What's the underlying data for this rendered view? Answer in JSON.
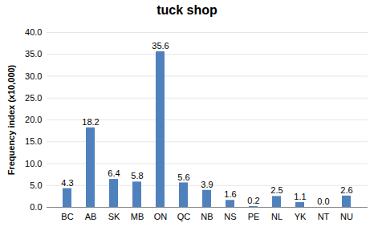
{
  "chart_data": {
    "type": "bar",
    "title": "tuck shop",
    "y_label": "Frequency index (x10,000)",
    "categories": [
      "BC",
      "AB",
      "SK",
      "MB",
      "ON",
      "QC",
      "NB",
      "NS",
      "PE",
      "NL",
      "YK",
      "NT",
      "NU"
    ],
    "values": [
      4.3,
      18.2,
      6.4,
      5.8,
      35.6,
      5.6,
      3.9,
      1.6,
      0.2,
      2.5,
      1.1,
      0.0,
      2.6
    ],
    "value_labels": [
      "4.3",
      "18.2",
      "6.4",
      "5.8",
      "35.6",
      "5.6",
      "3.9",
      "1.6",
      "0.2",
      "2.5",
      "1.1",
      "0.0",
      "2.6"
    ],
    "color": "#4f81bd",
    "ylim": [
      0,
      40
    ],
    "yticks": [
      {
        "value": 0,
        "label": "0.0"
      },
      {
        "value": 5,
        "label": "5.0"
      },
      {
        "value": 10,
        "label": "10.0"
      },
      {
        "value": 15,
        "label": "15.0"
      },
      {
        "value": 20,
        "label": "20.0"
      },
      {
        "value": 25,
        "label": "25.0"
      },
      {
        "value": 30,
        "label": "30.0"
      },
      {
        "value": 35,
        "label": "35.0"
      },
      {
        "value": 40,
        "label": "40.0"
      }
    ],
    "grid": true,
    "data_labels": true
  }
}
